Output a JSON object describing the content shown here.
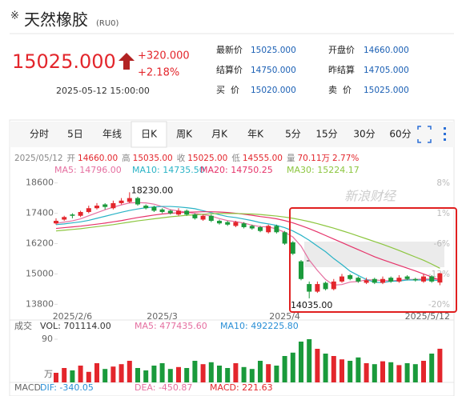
{
  "header": {
    "marker": "※",
    "title": "天然橡胶",
    "code": "(RU0)"
  },
  "quote": {
    "price": "15025.000",
    "change": "+320.000",
    "change_pct": "+2.18%",
    "time": "2025-05-12 15:00:00",
    "fields": [
      {
        "label": "最新价",
        "value": "15025.000"
      },
      {
        "label": "开盘价",
        "value": "14660.000"
      },
      {
        "label": "结算价",
        "value": "14750.000"
      },
      {
        "label": "昨结算",
        "value": "14705.000"
      },
      {
        "label": "买  价",
        "value": "15020.000"
      },
      {
        "label": "卖  价",
        "value": "15025.000"
      }
    ]
  },
  "tabs": [
    {
      "label": "分时"
    },
    {
      "label": "5日"
    },
    {
      "label": "年线"
    },
    {
      "label": "日K",
      "active": true
    },
    {
      "label": "周K"
    },
    {
      "label": "月K"
    },
    {
      "label": "年K"
    },
    {
      "label": "5分"
    },
    {
      "label": "15分"
    },
    {
      "label": "30分"
    },
    {
      "label": "60分"
    }
  ],
  "info_line": [
    {
      "value": "2025/05/12"
    },
    {
      "label": "开",
      "value": "14660.00"
    },
    {
      "label": "高",
      "value": "15035.00"
    },
    {
      "label": "收",
      "value": "15025.00"
    },
    {
      "label": "低",
      "value": "14555.00"
    },
    {
      "label": "量",
      "value": "70.11万"
    },
    {
      "value": "2.77%"
    }
  ],
  "watermark": "新浪财经",
  "chart_data": [
    {
      "type": "candlestick",
      "up_color": "#e3262c",
      "down_color": "#1a9a3b",
      "categories": [
        null,
        null,
        "2025/2/6",
        null,
        null,
        null,
        null,
        null,
        null,
        null,
        null,
        null,
        null,
        "2025/3",
        null,
        null,
        null,
        null,
        null,
        null,
        null,
        null,
        null,
        null,
        null,
        null,
        null,
        null,
        "2025/4",
        null,
        null,
        null,
        null,
        null,
        null,
        null,
        null,
        null,
        null,
        null,
        null,
        null,
        null,
        null,
        null,
        null,
        null,
        "2025/5/12"
      ],
      "open": [
        17000,
        17150,
        17350,
        17300,
        17450,
        17600,
        17750,
        17600,
        17800,
        17850,
        18000,
        17700,
        17650,
        17550,
        17500,
        17350,
        17500,
        17350,
        17150,
        17300,
        17100,
        17050,
        16900,
        17000,
        16900,
        16850,
        16650,
        16900,
        16650,
        16250,
        15500,
        14600,
        14300,
        14650,
        14400,
        14700,
        14950,
        14850,
        14650,
        14800,
        14650,
        14850,
        14700,
        14900,
        14800,
        14700,
        14900,
        14660
      ],
      "high": [
        17200,
        17300,
        17400,
        17500,
        17700,
        17800,
        17800,
        17900,
        18000,
        18230,
        18050,
        17750,
        17700,
        17600,
        17550,
        17600,
        17550,
        17400,
        17350,
        17350,
        17150,
        17100,
        17100,
        17050,
        16950,
        16900,
        16950,
        16950,
        16700,
        16300,
        15550,
        14700,
        14700,
        14700,
        14800,
        15000,
        15000,
        14900,
        14850,
        14850,
        14900,
        14900,
        14950,
        14950,
        14850,
        15000,
        14950,
        15035
      ],
      "low": [
        16950,
        17100,
        17200,
        17250,
        17400,
        17550,
        17550,
        17550,
        17750,
        17800,
        17700,
        17550,
        17450,
        17400,
        17350,
        17300,
        17300,
        17150,
        17100,
        17050,
        16950,
        16900,
        16850,
        16800,
        16750,
        16650,
        16600,
        16600,
        16150,
        15750,
        14750,
        14035,
        14250,
        14350,
        14350,
        14650,
        14750,
        14650,
        14600,
        14600,
        14600,
        14650,
        14650,
        14750,
        14700,
        14650,
        14650,
        14555
      ],
      "close": [
        17100,
        17250,
        17300,
        17450,
        17600,
        17700,
        17650,
        17800,
        17900,
        18000,
        17750,
        17600,
        17500,
        17450,
        17400,
        17500,
        17350,
        17200,
        17300,
        17100,
        17000,
        16950,
        17050,
        16850,
        16800,
        16700,
        16900,
        16650,
        16200,
        15800,
        14800,
        14300,
        14600,
        14400,
        14700,
        14900,
        14800,
        14700,
        14750,
        14650,
        14800,
        14700,
        14850,
        14800,
        14750,
        14900,
        14700,
        15025
      ],
      "series": [
        {
          "name": "MA5: 14796.00",
          "color": "#e56fa0",
          "values": [
            17000,
            17050,
            17100,
            17180,
            17300,
            17420,
            17540,
            17640,
            17730,
            17810,
            17820,
            17810,
            17760,
            17660,
            17540,
            17490,
            17440,
            17390,
            17350,
            17290,
            17190,
            17110,
            17070,
            17010,
            16930,
            16870,
            16860,
            16780,
            16650,
            16460,
            16100,
            15550,
            15140,
            14780,
            14560,
            14580,
            14680,
            14700,
            14770,
            14760,
            14740,
            14730,
            14750,
            14780,
            14780,
            14800,
            14800,
            14796
          ]
        },
        {
          "name": "MA10: 14735.50",
          "color": "#29b3c6",
          "values": [
            16950,
            16980,
            17020,
            17060,
            17120,
            17200,
            17280,
            17360,
            17440,
            17510,
            17570,
            17620,
            17650,
            17670,
            17670,
            17650,
            17620,
            17580,
            17500,
            17420,
            17340,
            17270,
            17230,
            17170,
            17110,
            17030,
            16980,
            16920,
            16830,
            16700,
            16530,
            16330,
            16100,
            15880,
            15610,
            15370,
            15110,
            14940,
            14780,
            14670,
            14660,
            14710,
            14720,
            14760,
            14760,
            14760,
            14760,
            14735.5
          ]
        },
        {
          "name": "MA20: 14750.25",
          "color": "#e6336a",
          "values": [
            16800,
            16830,
            16860,
            16890,
            16930,
            16970,
            17010,
            17060,
            17110,
            17170,
            17230,
            17280,
            17330,
            17370,
            17400,
            17420,
            17440,
            17450,
            17460,
            17460,
            17450,
            17430,
            17400,
            17360,
            17320,
            17270,
            17230,
            17180,
            17110,
            17020,
            16910,
            16790,
            16660,
            16520,
            16380,
            16240,
            16100,
            15960,
            15820,
            15680,
            15560,
            15450,
            15340,
            15230,
            15120,
            15000,
            14880,
            14750.25
          ]
        },
        {
          "name": "MA30: 15224.17",
          "color": "#8cc63f",
          "values": [
            16700,
            16730,
            16760,
            16790,
            16830,
            16870,
            16910,
            16950,
            17000,
            17050,
            17100,
            17140,
            17180,
            17220,
            17260,
            17290,
            17320,
            17340,
            17360,
            17380,
            17390,
            17390,
            17390,
            17380,
            17370,
            17350,
            17320,
            17290,
            17250,
            17200,
            17140,
            17070,
            16990,
            16900,
            16810,
            16710,
            16610,
            16500,
            16390,
            16280,
            16170,
            16050,
            15930,
            15800,
            15670,
            15540,
            15390,
            15224.17
          ]
        }
      ],
      "high_label": "18230.00",
      "low_label": "14035.00",
      "ylim": [
        13400,
        19000
      ],
      "yticks": [
        18600,
        17400,
        16200,
        15000,
        13800
      ],
      "y2lim": [
        -22.2,
        10.4
      ],
      "y2ticks": [
        {
          "value": 8,
          "label": "8%"
        },
        {
          "value": 1,
          "label": "1%"
        },
        {
          "value": -6,
          "label": "-6%"
        },
        {
          "value": -13,
          "label": "-13%"
        },
        {
          "value": -20,
          "label": "-20%"
        }
      ]
    },
    {
      "type": "bar",
      "title": "成交",
      "legend": [
        {
          "text": "VOL: 701114.00",
          "color": "#333333"
        },
        {
          "text": "MA5: 477435.60",
          "color": "#e56fa0"
        },
        {
          "text": "MA10: 492225.80",
          "color": "#2a8fd6"
        }
      ],
      "values": [
        20,
        30,
        25,
        35,
        22,
        40,
        28,
        33,
        38,
        45,
        30,
        25,
        35,
        40,
        28,
        32,
        30,
        45,
        38,
        42,
        35,
        30,
        40,
        32,
        28,
        45,
        38,
        35,
        55,
        62,
        85,
        90,
        70,
        60,
        55,
        48,
        45,
        52,
        40,
        38,
        44,
        42,
        36,
        40,
        38,
        45,
        60,
        70.11
      ],
      "ylim": [
        0,
        90
      ],
      "yticks": [
        90
      ],
      "y_unit": "万"
    },
    {
      "type": "text",
      "title": "MACD",
      "legend": [
        {
          "text": "DIF: -340.05",
          "color": "#2a8fd6"
        },
        {
          "text": "DEA: -450.87",
          "color": "#e56fa0"
        },
        {
          "text": "MACD: 221.63",
          "color": "#e3262c"
        }
      ]
    }
  ]
}
